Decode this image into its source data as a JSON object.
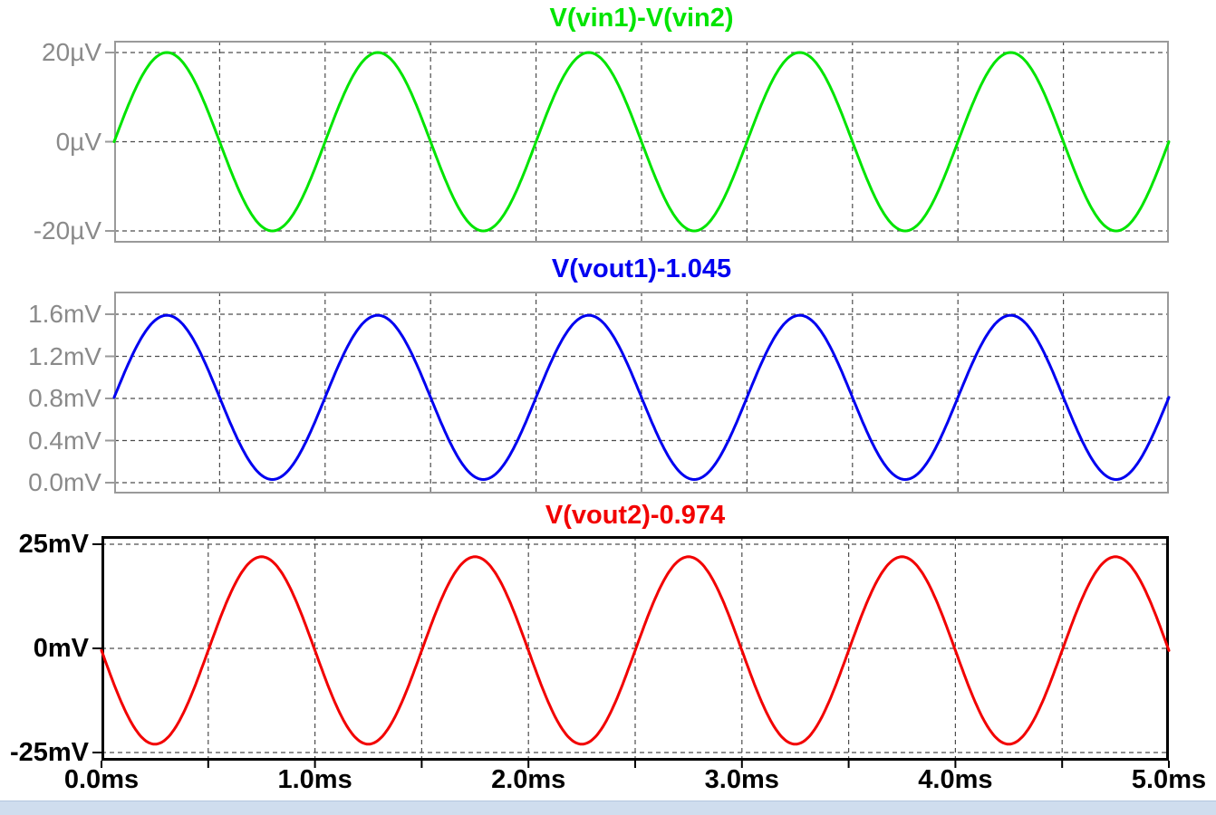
{
  "window": {
    "background": "#ffffff",
    "bottom_strip_color": "#cfddee"
  },
  "x_axis": {
    "tick_labels": [
      "0.0ms",
      "1.0ms",
      "2.0ms",
      "3.0ms",
      "4.0ms",
      "5.0ms"
    ],
    "tick_values_ms": [
      0,
      1,
      2,
      3,
      4,
      5
    ],
    "color": "#000000"
  },
  "grid": {
    "color": "#4d4d4d",
    "dash": "5 4",
    "x_step_ms": 0.5
  },
  "chart_data": [
    {
      "type": "line",
      "title": "V(vin1)-V(vin2)",
      "color": "#00e400",
      "unit": "µV",
      "x_range_ms": [
        0,
        5
      ],
      "grid_x_step_ms": 0.5,
      "y_ticks": [
        {
          "label": "20µV",
          "value": 20
        },
        {
          "label": "0µV",
          "value": 0
        },
        {
          "label": "-20µV",
          "value": -20
        }
      ],
      "ylim": [
        -20,
        20
      ],
      "wave": {
        "shape": "sine",
        "amplitude": 20,
        "offset": 0,
        "period_ms": 1,
        "phase_deg": 0
      },
      "axis_label_color": "#8a8a8a",
      "border_color": "#9a9a9a",
      "active": false
    },
    {
      "type": "line",
      "title": "V(vout1)-1.045",
      "color": "#0000f0",
      "unit": "mV",
      "x_range_ms": [
        0,
        5
      ],
      "grid_x_step_ms": 0.5,
      "y_ticks": [
        {
          "label": "1.6mV",
          "value": 1.6
        },
        {
          "label": "1.2mV",
          "value": 1.2
        },
        {
          "label": "0.8mV",
          "value": 0.8
        },
        {
          "label": "0.4mV",
          "value": 0.4
        },
        {
          "label": "0.0mV",
          "value": 0.0
        }
      ],
      "ylim": [
        0.0,
        1.6
      ],
      "wave": {
        "shape": "sine",
        "amplitude": 0.78,
        "offset": 0.81,
        "period_ms": 1,
        "phase_deg": 0
      },
      "axis_label_color": "#8a8a8a",
      "border_color": "#9a9a9a",
      "active": false
    },
    {
      "type": "line",
      "title": "V(vout2)-0.974",
      "color": "#f20000",
      "unit": "mV",
      "x_range_ms": [
        0,
        5
      ],
      "grid_x_step_ms": 0.5,
      "y_ticks": [
        {
          "label": "25mV",
          "value": 25
        },
        {
          "label": "0mV",
          "value": 0
        },
        {
          "label": "-25mV",
          "value": -25
        }
      ],
      "ylim": [
        -25,
        25
      ],
      "wave": {
        "shape": "sine",
        "amplitude": 22.5,
        "offset": -0.5,
        "period_ms": 1,
        "phase_deg": 180
      },
      "axis_label_color": "#000000",
      "border_color": "#000000",
      "active": true
    }
  ]
}
